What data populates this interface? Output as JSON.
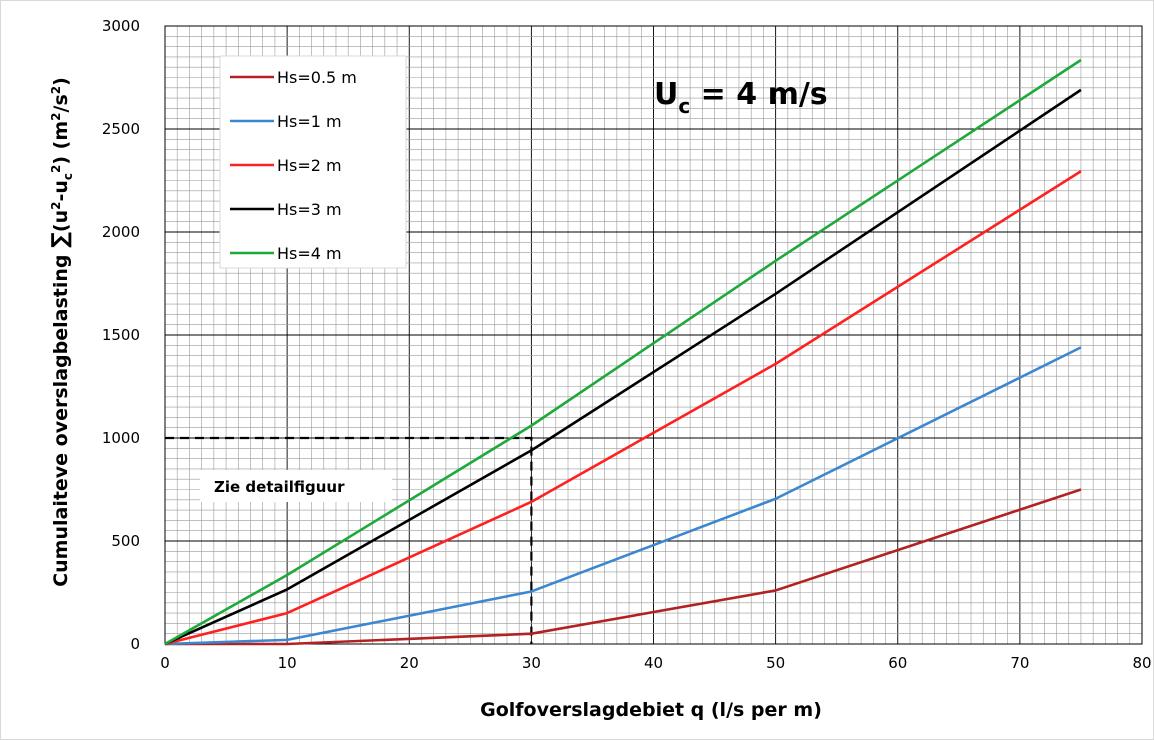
{
  "chart_data": {
    "type": "line",
    "xlabel": "Golfoverslagdebiet q (l/s per m)",
    "ylabel_parts": {
      "before": "Cumulaiteve overslagbelasting ",
      "sum": "∑",
      "open": "(u",
      "sup1": "2",
      "minus": "-u",
      "sub_c": "c",
      "sup2": "2",
      "units": ") (m",
      "sup3": "2",
      "per": "/s",
      "sup4": "2",
      "close": ")"
    },
    "xlim": [
      0,
      80
    ],
    "ylim": [
      0,
      3000
    ],
    "x_ticks": [
      "0",
      "10",
      "20",
      "30",
      "40",
      "50",
      "60",
      "70",
      "80"
    ],
    "y_ticks": [
      "0",
      "500",
      "1000",
      "1500",
      "2000",
      "2500",
      "3000"
    ],
    "grid": true,
    "legend_position": "top-left",
    "annotation_main": {
      "prefix": "U",
      "sub": "c",
      "suffix": " = 4 m/s"
    },
    "annotation_note": "Zie detailfiguur",
    "reference_lines": [
      {
        "style": "dashed",
        "points": [
          [
            0,
            1000
          ],
          [
            30,
            1000
          ],
          [
            30,
            0
          ]
        ]
      }
    ],
    "series": [
      {
        "name": "Hs=0.5 m",
        "color": "#b22222",
        "x": [
          0,
          10,
          30,
          50,
          75
        ],
        "y": [
          0,
          0,
          50,
          260,
          750
        ]
      },
      {
        "name": "Hs=1 m",
        "color": "#3d87cf",
        "x": [
          0,
          10,
          30,
          50,
          75
        ],
        "y": [
          0,
          20,
          255,
          705,
          1440
        ]
      },
      {
        "name": "Hs=2 m",
        "color": "#ff2020",
        "x": [
          0,
          10,
          30,
          50,
          75
        ],
        "y": [
          0,
          150,
          690,
          1360,
          2295
        ]
      },
      {
        "name": "Hs=3 m",
        "color": "#000000",
        "x": [
          0,
          10,
          30,
          50,
          75
        ],
        "y": [
          0,
          265,
          940,
          1700,
          2690
        ]
      },
      {
        "name": "Hs=4 m",
        "color": "#1daa3a",
        "x": [
          0,
          10,
          30,
          50,
          75
        ],
        "y": [
          0,
          335,
          1060,
          1860,
          2835
        ]
      }
    ]
  }
}
